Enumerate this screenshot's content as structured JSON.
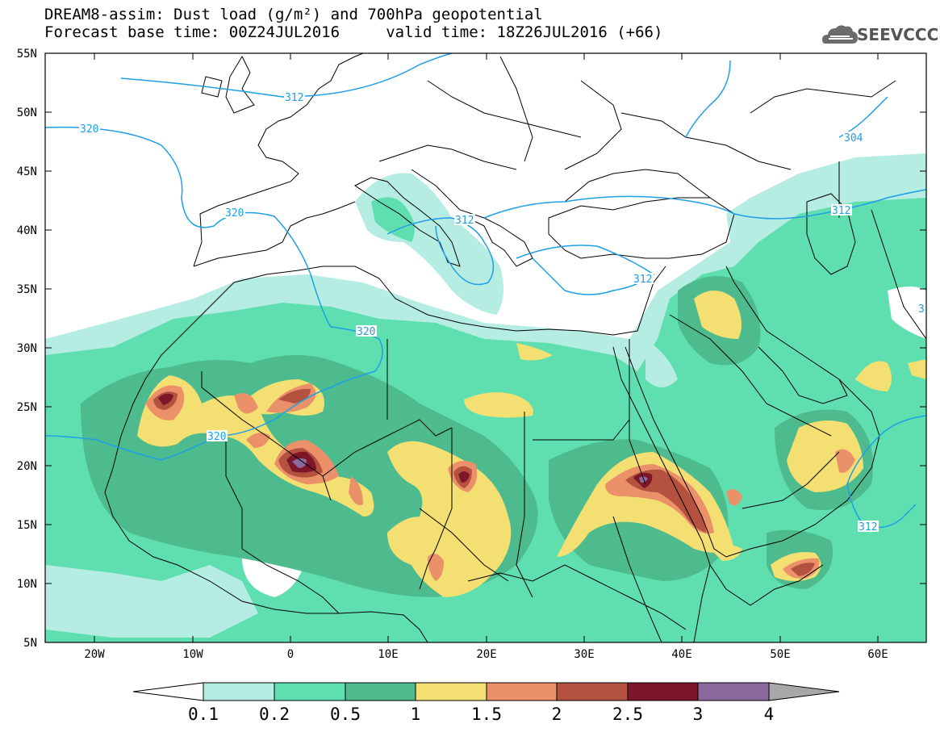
{
  "header": {
    "title_line1": "DREAM8-assim: Dust load (g/m²) and 700hPa geopotential",
    "title_line2": "Forecast base time: 00Z24JUL2016     valid time: 18Z26JUL2016 (+66)"
  },
  "logo": {
    "text": "SEEVCCC",
    "icon": "cloud-icon"
  },
  "map": {
    "lat_labels": [
      "55N",
      "50N",
      "45N",
      "40N",
      "35N",
      "30N",
      "25N",
      "20N",
      "15N",
      "10N",
      "5N"
    ],
    "lon_labels": [
      "20W",
      "10W",
      "0",
      "10E",
      "20E",
      "30E",
      "40E",
      "50E",
      "60E"
    ],
    "contour_labels": [
      "320",
      "312",
      "320",
      "312",
      "304",
      "312",
      "320",
      "320",
      "312",
      "312",
      "320",
      "3"
    ]
  },
  "colorbar": {
    "labels": [
      "0.1",
      "0.2",
      "0.5",
      "1",
      "1.5",
      "2",
      "2.5",
      "3",
      "4"
    ],
    "colors": [
      "#ffffff",
      "#b6ede2",
      "#5fdfb0",
      "#4dbb8e",
      "#f3df72",
      "#eb916a",
      "#b5513f",
      "#7c1628",
      "#8a6a9e",
      "#a8a8a8"
    ]
  }
}
